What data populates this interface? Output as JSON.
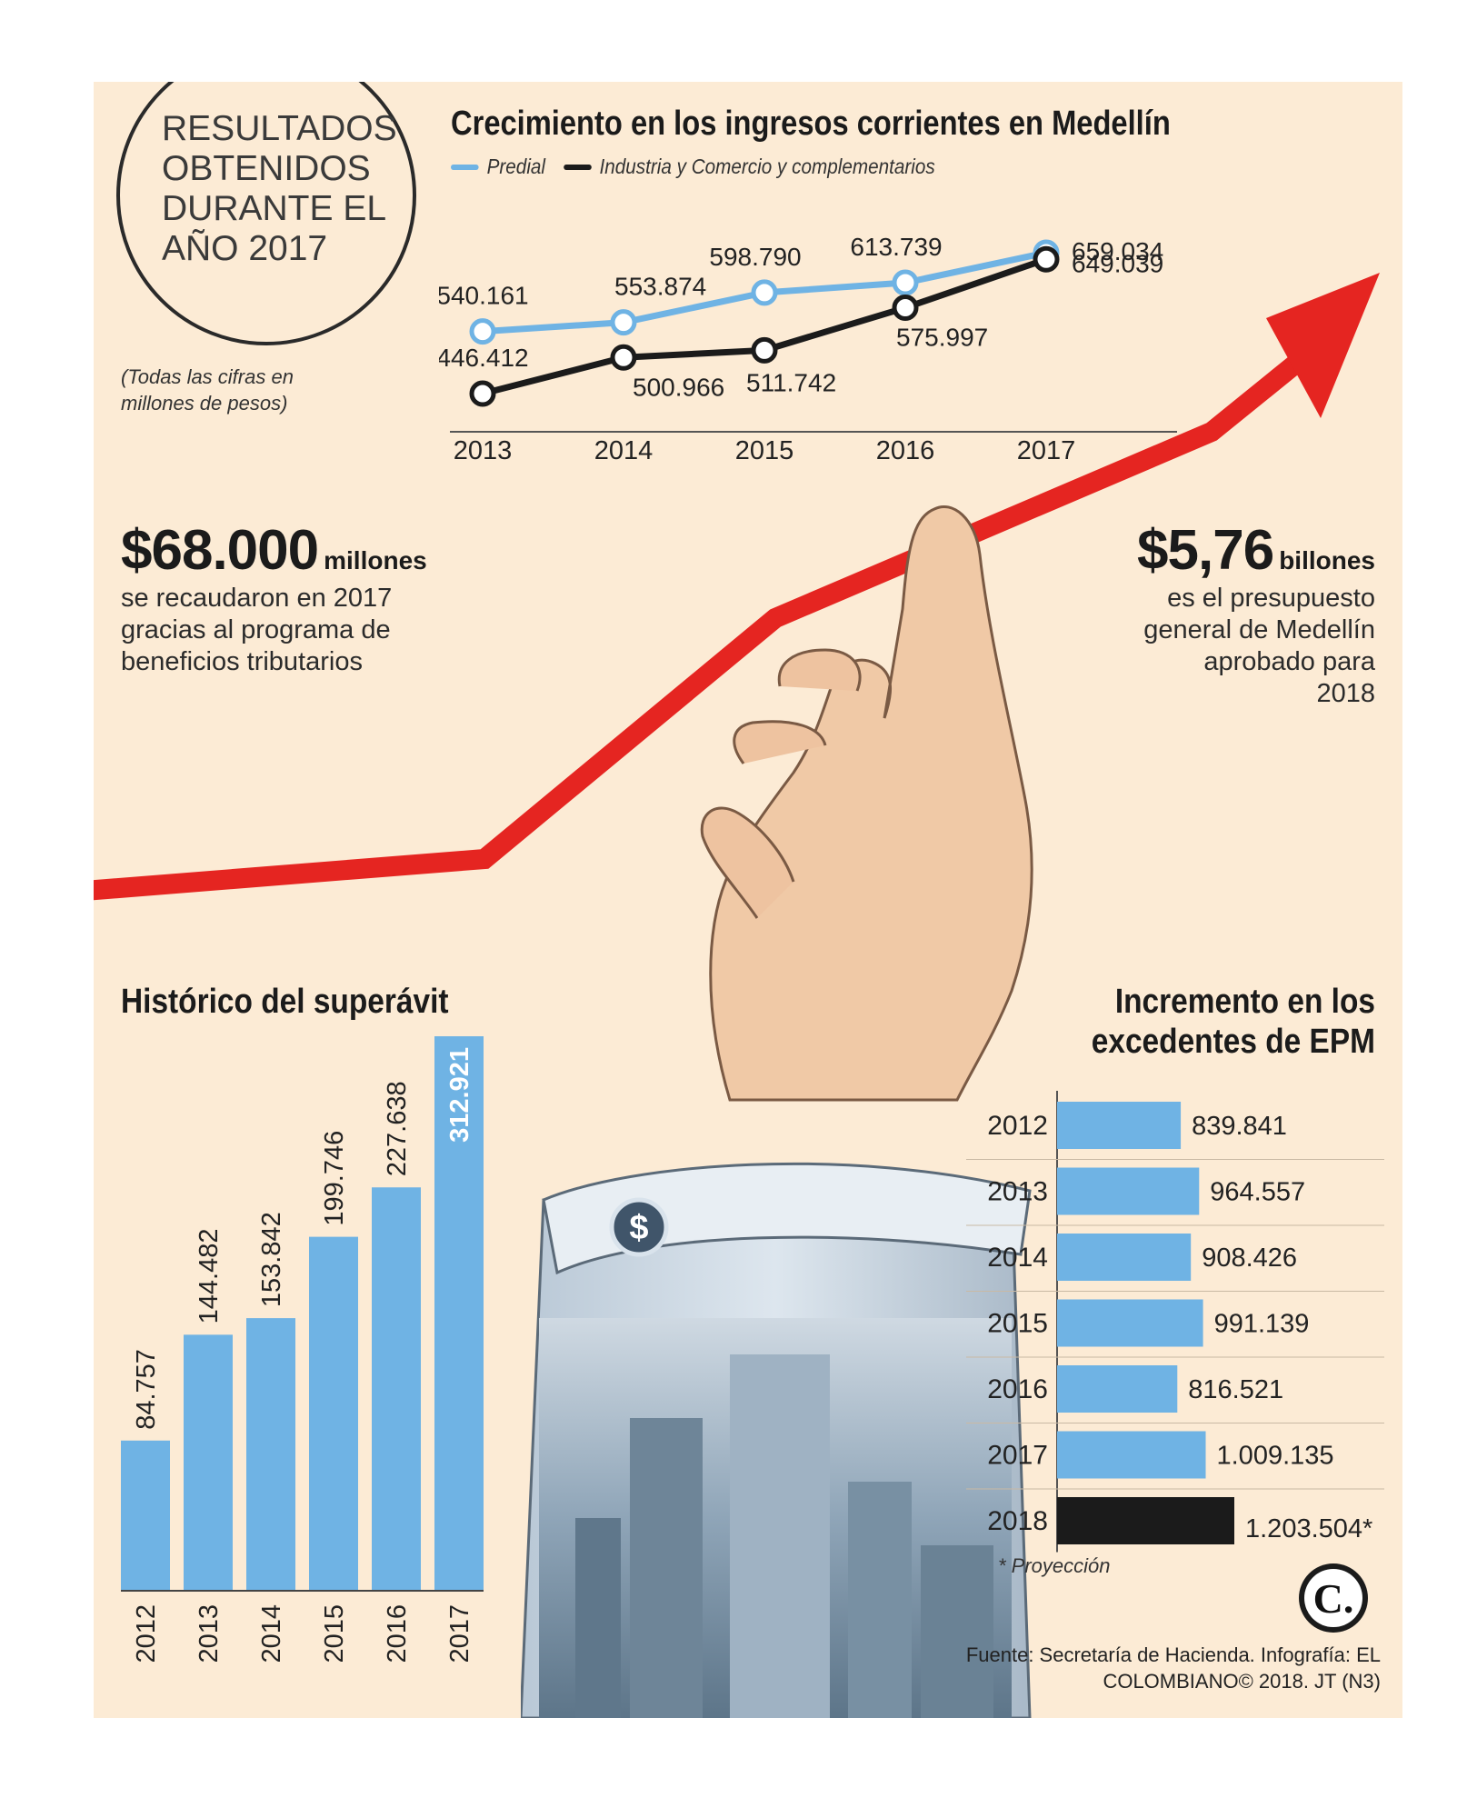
{
  "header": {
    "badge": "RESULTADOS OBTENIDOS DURANTE EL AÑO 2017",
    "note": "(Todas las cifras en millones de pesos)"
  },
  "stats": [
    {
      "value": "$68.000",
      "unit": "millones",
      "description": "se recaudaron en 2017 gracias al programa de beneficios tributarios"
    },
    {
      "value": "$5,76",
      "unit": "billones",
      "description": "es el presupuesto general de Medellín aprobado para 2018"
    }
  ],
  "footer": {
    "projection_note": "* Proyección",
    "source": "Fuente: Secretaría de Hacienda. Infografía: EL COLOMBIANO© 2018. JT (N3)",
    "logo_letter": "C."
  },
  "colors": {
    "accent_red": "#e52521",
    "bar_blue": "#6fb3e4",
    "dark": "#1b1b1b",
    "background": "#fcebd5"
  },
  "chart_data": [
    {
      "type": "line",
      "title": "Crecimiento en los ingresos corrientes en Medellín",
      "x": [
        "2013",
        "2014",
        "2015",
        "2016",
        "2017"
      ],
      "series": [
        {
          "name": "Predial",
          "color": "#6fb3e4",
          "values": [
            540161,
            553874,
            598790,
            613739,
            659034
          ],
          "labels": [
            "540.161",
            "553.874",
            "598.790",
            "613.739",
            "659.034"
          ]
        },
        {
          "name": "Industria y Comercio y complementarios",
          "color": "#1b1b1b",
          "values": [
            446412,
            500966,
            511742,
            575997,
            649039
          ],
          "labels": [
            "446.412",
            "500.966",
            "511.742",
            "575.997",
            "649.039"
          ]
        }
      ],
      "ylim": [
        430000,
        670000
      ],
      "legend": "top-left",
      "grid": false
    },
    {
      "type": "bar",
      "title": "Histórico del superávit",
      "categories": [
        "2012",
        "2013",
        "2014",
        "2015",
        "2016",
        "2017"
      ],
      "values": [
        84757,
        144482,
        153842,
        199746,
        227638,
        312921
      ],
      "labels": [
        "84.757",
        "144.482",
        "153.842",
        "199.746",
        "227.638",
        "312.921"
      ],
      "orientation": "vertical",
      "ylim": [
        0,
        312921
      ],
      "grid": false
    },
    {
      "type": "bar",
      "title": "Incremento en los excedentes de EPM",
      "categories": [
        "2012",
        "2013",
        "2014",
        "2015",
        "2016",
        "2017",
        "2018"
      ],
      "values": [
        839841,
        964557,
        908426,
        991139,
        816521,
        1009135,
        1203504
      ],
      "labels": [
        "839.841",
        "964.557",
        "908.426",
        "991.139",
        "816.521",
        "1.009.135",
        "1.203.504*"
      ],
      "orientation": "horizontal",
      "projected": [
        false,
        false,
        false,
        false,
        false,
        false,
        true
      ],
      "grid": false
    }
  ]
}
